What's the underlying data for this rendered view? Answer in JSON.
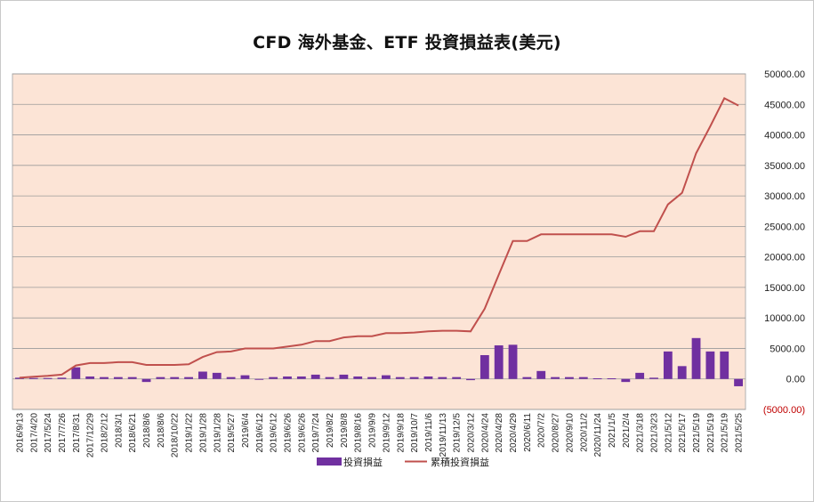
{
  "chart_data": {
    "type": "bar+line",
    "title": "CFD 海外基金、ETF 投資損益表(美元)",
    "series": [
      {
        "name": "投資損益",
        "type": "bar",
        "color": "#7030a0",
        "values": [
          200,
          150,
          150,
          200,
          1900,
          400,
          300,
          300,
          300,
          -500,
          300,
          300,
          300,
          1200,
          1000,
          300,
          600,
          -100,
          300,
          400,
          400,
          700,
          300,
          700,
          400,
          300,
          600,
          300,
          300,
          400,
          300,
          300,
          -200,
          3900,
          5500,
          5600,
          300,
          1300,
          300,
          300,
          300,
          100,
          100,
          -500,
          1000,
          200,
          4500,
          2100,
          6700,
          4500,
          4500,
          -1200
        ]
      },
      {
        "name": "累積投資損益",
        "type": "line",
        "color": "#c0504d",
        "values": [
          200,
          350,
          500,
          700,
          2200,
          2600,
          2600,
          2750,
          2750,
          2300,
          2300,
          2300,
          2400,
          3600,
          4400,
          4500,
          5000,
          5000,
          5000,
          5300,
          5600,
          6200,
          6200,
          6800,
          7000,
          7000,
          7500,
          7500,
          7600,
          7800,
          7900,
          7900,
          7800,
          11500,
          17100,
          22600,
          22600,
          23700,
          23700,
          23700,
          23700,
          23700,
          23700,
          23300,
          24200,
          24200,
          28600,
          30500,
          37000,
          41400,
          46000,
          44800
        ]
      }
    ],
    "categories": [
      "2016/9/13",
      "2017/4/20",
      "2017/5/24",
      "2017/7/26",
      "2017/8/31",
      "2017/12/29",
      "2018/2/12",
      "2018/3/1",
      "2018/6/21",
      "2018/8/6",
      "2018/8/6",
      "2018/10/22",
      "2019/1/22",
      "2019/1/28",
      "2019/1/28",
      "2019/5/27",
      "2019/6/4",
      "2019/6/12",
      "2019/6/12",
      "2019/6/26",
      "2019/6/26",
      "2019/7/24",
      "2019/8/2",
      "2019/8/8",
      "2019/8/16",
      "2019/9/9",
      "2019/9/12",
      "2019/9/18",
      "2019/10/7",
      "2019/11/6",
      "2019/11/13",
      "2019/12/5",
      "2020/3/12",
      "2020/4/24",
      "2020/4/28",
      "2020/4/29",
      "2020/6/11",
      "2020/7/2",
      "2020/8/27",
      "2020/9/10",
      "2020/11/2",
      "2020/11/24",
      "2021/1/5",
      "2021/2/4",
      "2021/3/18",
      "2021/3/23",
      "2021/5/12",
      "2021/5/17",
      "2021/5/19",
      "2021/5/19",
      "2021/5/19",
      "2021/5/25"
    ],
    "y_ticks": [
      "50000.00",
      "45000.00",
      "40000.00",
      "35000.00",
      "30000.00",
      "25000.00",
      "20000.00",
      "15000.00",
      "10000.00",
      "5000.00",
      "0.00",
      "(5000.00)"
    ],
    "ylim": [
      -5000,
      50000
    ],
    "y_step": 5000,
    "xlabel": "",
    "ylabel": "",
    "grid": true,
    "y_axis_side": "right",
    "legend_position": "bottom",
    "plot_background": "#fce4d6",
    "negative_tick_color": "#c00000"
  }
}
